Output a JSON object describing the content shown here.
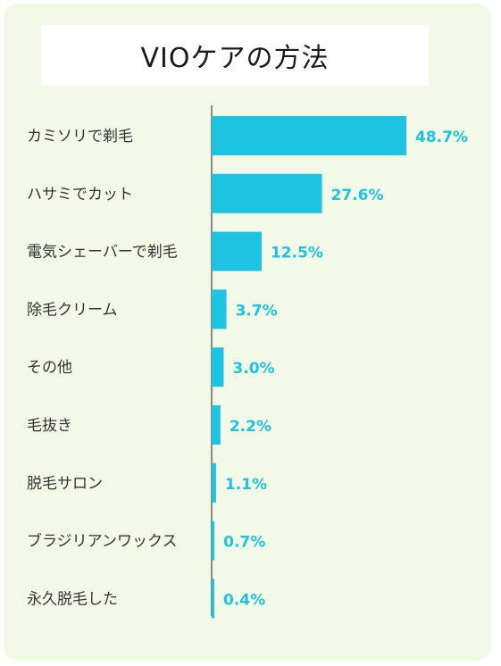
{
  "chart_data": {
    "type": "bar",
    "orientation": "horizontal",
    "title": "VIOケアの方法",
    "categories": [
      "カミソリで剃毛",
      "ハサミでカット",
      "電気シェーバーで剃毛",
      "除毛クリーム",
      "その他",
      "毛抜き",
      "脱毛サロン",
      "ブラジリアンワックス",
      "永久脱毛した"
    ],
    "values": [
      48.7,
      27.6,
      12.5,
      3.7,
      3.0,
      2.2,
      1.1,
      0.7,
      0.4
    ],
    "value_labels": [
      "48.7%",
      "27.6%",
      "12.5%",
      "3.7%",
      "3.0%",
      "2.2%",
      "1.1%",
      "0.7%",
      "0.4%"
    ],
    "xlim": [
      0,
      50
    ],
    "grid": false,
    "bar_color": "#1cc4e2",
    "label_color": "#1cc4e2",
    "background_color": "#f2f9e6"
  }
}
